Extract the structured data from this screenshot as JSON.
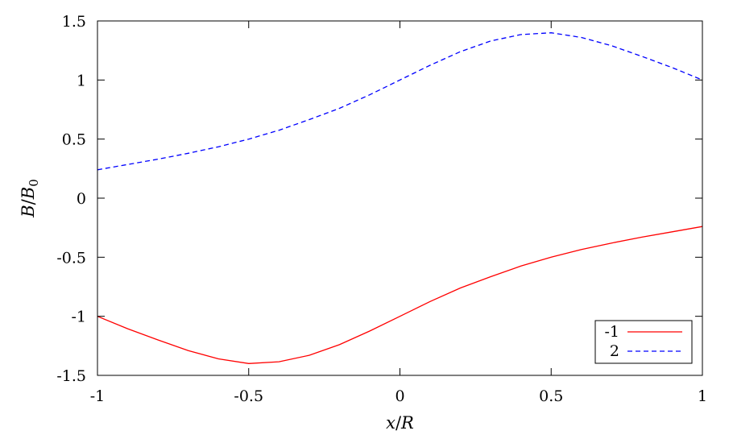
{
  "chart_data": {
    "type": "line",
    "title": "",
    "xlabel_parts": [
      "x",
      "/",
      "R"
    ],
    "ylabel_parts": [
      "B",
      "/",
      "B",
      "0"
    ],
    "xlim": [
      -1,
      1
    ],
    "ylim": [
      -1.5,
      1.5
    ],
    "x_ticks": [
      {
        "value": -1,
        "label": "-1"
      },
      {
        "value": -0.5,
        "label": "-0.5"
      },
      {
        "value": 0,
        "label": "0"
      },
      {
        "value": 0.5,
        "label": "0.5"
      },
      {
        "value": 1,
        "label": "1"
      }
    ],
    "y_ticks": [
      {
        "value": -1.5,
        "label": "-1.5"
      },
      {
        "value": -1,
        "label": "-1"
      },
      {
        "value": -0.5,
        "label": "-0.5"
      },
      {
        "value": 0,
        "label": "0"
      },
      {
        "value": 0.5,
        "label": "0.5"
      },
      {
        "value": 1,
        "label": "1"
      },
      {
        "value": 1.5,
        "label": "1.5"
      }
    ],
    "grid": false,
    "legend_position": "bottom-right",
    "series": [
      {
        "name": "-1",
        "color": "#ff0000",
        "dash": "solid",
        "x": [
          -1.0,
          -0.9,
          -0.8,
          -0.7,
          -0.6,
          -0.5,
          -0.4,
          -0.3,
          -0.2,
          -0.1,
          0.0,
          0.1,
          0.2,
          0.3,
          0.4,
          0.5,
          0.6,
          0.7,
          0.8,
          0.9,
          1.0
        ],
        "y": [
          -1.0,
          -1.105,
          -1.2,
          -1.29,
          -1.36,
          -1.4,
          -1.385,
          -1.33,
          -1.24,
          -1.125,
          -1.0,
          -0.875,
          -0.76,
          -0.665,
          -0.575,
          -0.5,
          -0.435,
          -0.38,
          -0.33,
          -0.285,
          -0.24
        ]
      },
      {
        "name": "2",
        "color": "#0000ff",
        "dash": "dashed",
        "x": [
          -1.0,
          -0.9,
          -0.8,
          -0.7,
          -0.6,
          -0.5,
          -0.4,
          -0.3,
          -0.2,
          -0.1,
          0.0,
          0.1,
          0.2,
          0.3,
          0.4,
          0.5,
          0.6,
          0.7,
          0.8,
          0.9,
          1.0
        ],
        "y": [
          0.24,
          0.285,
          0.33,
          0.38,
          0.435,
          0.5,
          0.575,
          0.665,
          0.76,
          0.875,
          1.0,
          1.125,
          1.24,
          1.33,
          1.385,
          1.4,
          1.36,
          1.29,
          1.2,
          1.105,
          1.0
        ]
      }
    ]
  }
}
